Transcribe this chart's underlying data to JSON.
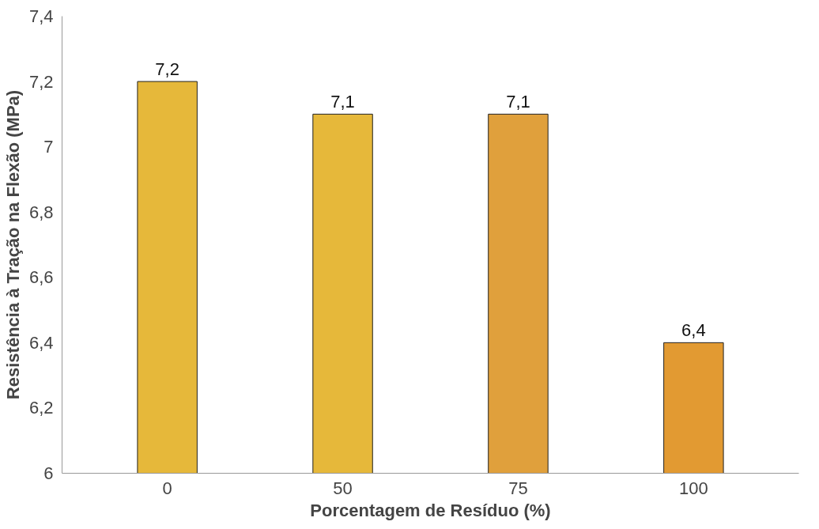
{
  "chart_data": {
    "type": "bar",
    "xlabel": "Porcentagem de Resíduo (%)",
    "ylabel": "Resistência à Tração na Flexão (MPa)",
    "categories": [
      "0",
      "50",
      "75",
      "100"
    ],
    "values": [
      7.2,
      7.1,
      7.1,
      6.4
    ],
    "colors": [
      "#e6b83a",
      "#e6b83a",
      "#e0a03c",
      "#e29a32"
    ],
    "value_labels": [
      "7,2",
      "7,1",
      "7,1",
      "6,4"
    ],
    "ylim": [
      6,
      7.4
    ],
    "yticks": [
      {
        "value": 6,
        "label": "6"
      },
      {
        "value": 6.2,
        "label": "6,2"
      },
      {
        "value": 6.4,
        "label": "6,4"
      },
      {
        "value": 6.6,
        "label": "6,6"
      },
      {
        "value": 6.8,
        "label": "6,8"
      },
      {
        "value": 7,
        "label": "7"
      },
      {
        "value": 7.2,
        "label": "7,2"
      },
      {
        "value": 7.4,
        "label": "7,4"
      }
    ],
    "grid": false
  }
}
